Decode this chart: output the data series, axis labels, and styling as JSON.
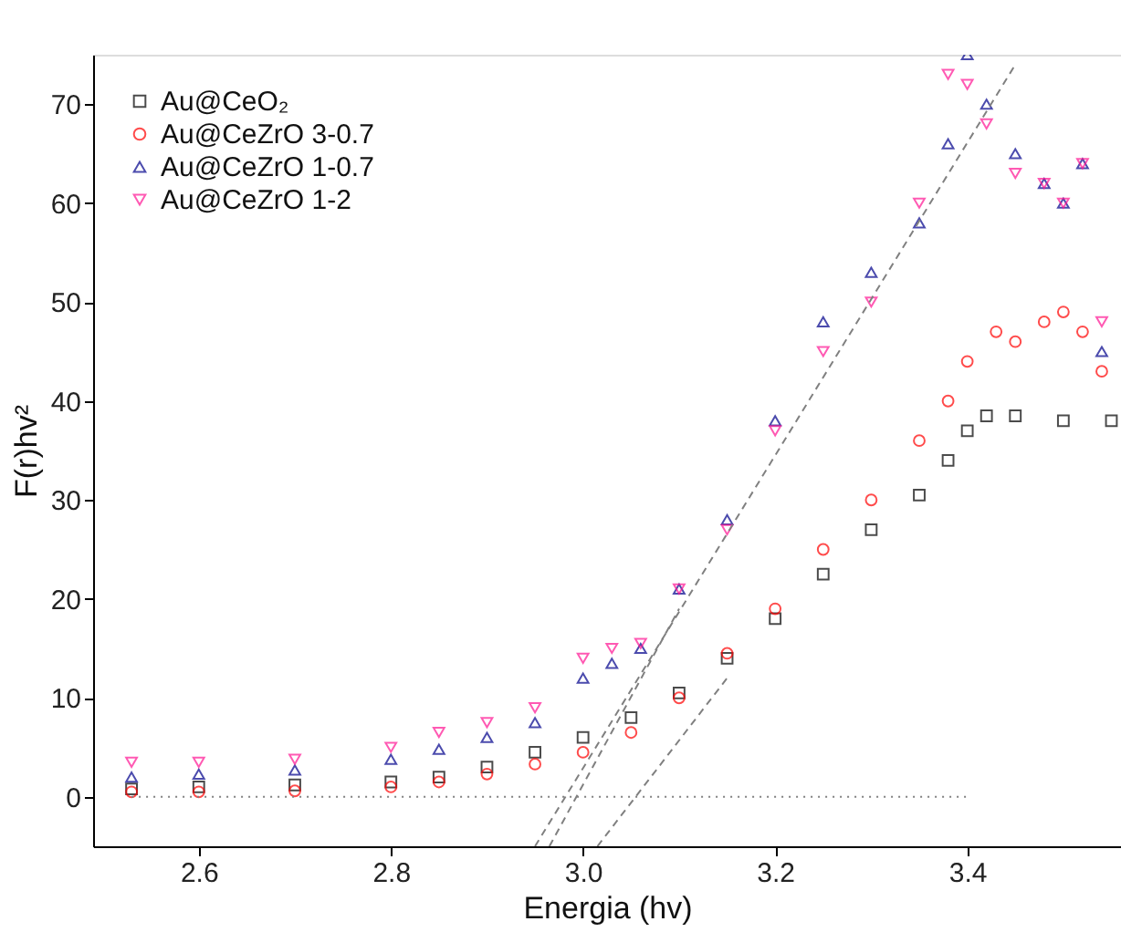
{
  "chart_data": {
    "type": "scatter",
    "xlabel": "Energia (hv)",
    "ylabel": "F(r)hv²",
    "xlim": [
      2.49,
      3.56
    ],
    "ylim": [
      -5,
      75
    ],
    "xticks": [
      2.6,
      2.8,
      {
        "value": 3,
        "label": "3.0"
      },
      3.2,
      3.4
    ],
    "yticks": [
      0,
      10,
      20,
      30,
      40,
      50,
      60,
      70
    ],
    "grid": false,
    "legend": "top left",
    "series": [
      {
        "name": "Au@CeO₂",
        "marker": "square",
        "color": "#000000",
        "x": [
          2.53,
          2.6,
          2.7,
          2.8,
          2.85,
          2.9,
          2.95,
          3.0,
          3.05,
          3.1,
          3.15,
          3.2,
          3.25,
          3.3,
          3.35,
          3.38,
          3.4,
          3.42,
          3.45,
          3.5,
          3.55
        ],
        "values": [
          0.8,
          1.0,
          1.2,
          1.5,
          2,
          3,
          4.5,
          6,
          8,
          10.5,
          14,
          18,
          22.5,
          27,
          30.5,
          34,
          37,
          38.5,
          38.5,
          38,
          38
        ]
      },
      {
        "name": "Au@CeZrO 3-0.7",
        "marker": "circle",
        "color": "#ff0000",
        "x": [
          2.53,
          2.6,
          2.7,
          2.8,
          2.85,
          2.9,
          2.95,
          3.0,
          3.05,
          3.1,
          3.15,
          3.2,
          3.25,
          3.3,
          3.35,
          3.38,
          3.4,
          3.43,
          3.45,
          3.48,
          3.5,
          3.52,
          3.54
        ],
        "values": [
          0.5,
          0.5,
          0.6,
          1,
          1.5,
          2.3,
          3.3,
          4.5,
          6.5,
          10,
          14.5,
          19,
          25,
          30,
          36,
          40,
          44,
          47,
          46,
          48,
          49,
          47,
          43
        ]
      },
      {
        "name": "Au@CeZrO 1-0.7",
        "marker": "triangle",
        "color": "#00008b",
        "x": [
          2.53,
          2.6,
          2.7,
          2.8,
          2.85,
          2.9,
          2.95,
          3.0,
          3.03,
          3.06,
          3.1,
          3.15,
          3.2,
          3.25,
          3.3,
          3.35,
          3.38,
          3.4,
          3.42,
          3.45,
          3.48,
          3.5,
          3.52,
          3.54
        ],
        "values": [
          2,
          2.3,
          2.7,
          3.8,
          4.8,
          6,
          7.5,
          12,
          13.5,
          15,
          21,
          28,
          38,
          48,
          53,
          58,
          66,
          75,
          70,
          65,
          62,
          60,
          64,
          45
        ]
      },
      {
        "name": "Au@CeZrO 1-2",
        "marker": "triangle-down",
        "color": "#ff1493",
        "x": [
          2.53,
          2.6,
          2.7,
          2.8,
          2.85,
          2.9,
          2.95,
          3.0,
          3.03,
          3.06,
          3.1,
          3.15,
          3.2,
          3.25,
          3.3,
          3.35,
          3.38,
          3.4,
          3.42,
          3.45,
          3.48,
          3.5,
          3.52,
          3.54
        ],
        "values": [
          3.5,
          3.5,
          3.8,
          5,
          6.5,
          7.5,
          9,
          14,
          15,
          15.5,
          21,
          27,
          37,
          45,
          50,
          60,
          73,
          72,
          68,
          63,
          62,
          60,
          64,
          48
        ]
      },
      {
        "type": "line",
        "line_style": "dashed",
        "color": "#808080",
        "x": [
          2.95,
          3.45
        ],
        "values": [
          -5,
          74
        ]
      },
      {
        "type": "line",
        "line_style": "dashed",
        "color": "#808080",
        "x": [
          2.965,
          3.1
        ],
        "values": [
          -5,
          19
        ]
      },
      {
        "type": "line",
        "line_style": "dashed",
        "color": "#808080",
        "x": [
          3.015,
          3.15
        ],
        "values": [
          -5,
          12
        ]
      },
      {
        "type": "line",
        "line_style": "dotted",
        "color": "#808080",
        "x": [
          2.53,
          3.4
        ],
        "values": [
          0,
          0
        ]
      }
    ]
  }
}
